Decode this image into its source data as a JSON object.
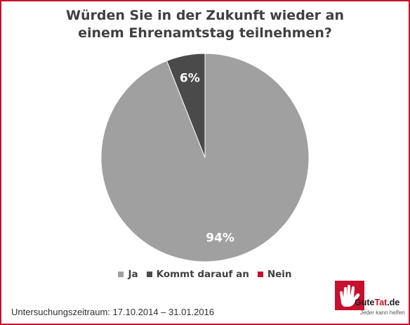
{
  "chart_data": {
    "type": "pie",
    "title_lines": [
      "Würden Sie in der Zukunft wieder an",
      "einem Ehrenamtstag teilnehmen?"
    ],
    "categories": [
      "Ja",
      "Kommt darauf an",
      "Nein"
    ],
    "values": [
      94,
      6,
      0
    ],
    "data_labels": [
      "94%",
      "6%",
      ""
    ],
    "colors": [
      "#a0a0a0",
      "#4a4a4a",
      "#c8102e"
    ],
    "legend_position": "bottom",
    "start_angle": "12 o'clock",
    "direction": "clockwise"
  },
  "footnote": "Untersuchungszeitraum: 17.10.2014 – 31.01.2016",
  "logo": {
    "name_part1": "Gute",
    "name_part2": "Tat",
    "name_part3": ".de",
    "tagline": "Jeder kann helfen",
    "accent_color": "#c8102e",
    "icon": "hand-icon"
  }
}
